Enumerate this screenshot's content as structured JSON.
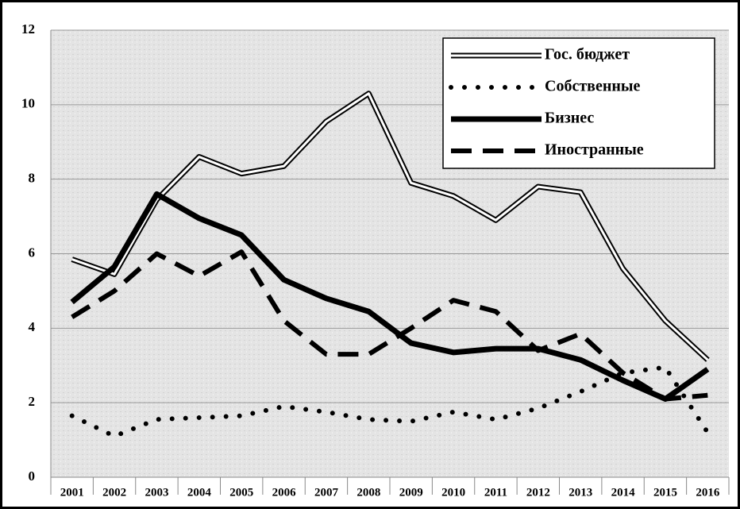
{
  "chart_data": {
    "type": "line",
    "categories": [
      "2001",
      "2002",
      "2003",
      "2004",
      "2005",
      "2006",
      "2007",
      "2008",
      "2009",
      "2010",
      "2011",
      "2012",
      "2013",
      "2014",
      "2015",
      "2016"
    ],
    "series": [
      {
        "name": "Гос. бюджет",
        "color": "#000000",
        "style": "double",
        "values": [
          5.85,
          5.45,
          7.45,
          8.6,
          8.15,
          8.35,
          9.55,
          10.3,
          7.9,
          7.55,
          6.9,
          7.8,
          7.65,
          5.6,
          4.2,
          3.15
        ]
      },
      {
        "name": "Собственные",
        "color": "#000000",
        "style": "dotted",
        "values": [
          1.65,
          1.1,
          1.55,
          1.6,
          1.65,
          1.9,
          1.75,
          1.55,
          1.5,
          1.75,
          1.55,
          1.85,
          2.3,
          2.8,
          2.95,
          1.2
        ]
      },
      {
        "name": "Бизнес",
        "color": "#000000",
        "style": "solid",
        "values": [
          4.7,
          5.65,
          7.6,
          6.95,
          6.5,
          5.3,
          4.8,
          4.45,
          3.6,
          3.35,
          3.45,
          3.45,
          3.15,
          2.6,
          2.1,
          2.9
        ]
      },
      {
        "name": "Иностранные",
        "color": "#000000",
        "style": "dashed",
        "values": [
          4.3,
          5.0,
          6.0,
          5.4,
          6.05,
          4.2,
          3.3,
          3.3,
          4.0,
          4.75,
          4.45,
          3.4,
          3.85,
          2.8,
          2.1,
          2.2
        ]
      }
    ],
    "ylim": [
      0,
      12
    ],
    "yticks": [
      0,
      2,
      4,
      6,
      8,
      10,
      12
    ],
    "grid": true,
    "legend": "top-right"
  }
}
